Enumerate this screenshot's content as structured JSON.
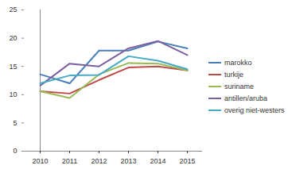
{
  "chart_data": {
    "type": "line",
    "categories": [
      "2010",
      "2011",
      "2012",
      "2013",
      "2014",
      "2015"
    ],
    "series": [
      {
        "name": "marokko",
        "color": "#4a7ebb",
        "values": [
          13.6,
          12.0,
          17.8,
          17.8,
          19.4,
          18.2
        ]
      },
      {
        "name": "turkije",
        "color": "#be4b48",
        "values": [
          10.6,
          10.2,
          12.6,
          14.8,
          15.0,
          14.3
        ]
      },
      {
        "name": "suriname",
        "color": "#98b954",
        "values": [
          10.6,
          9.4,
          13.6,
          15.6,
          15.5,
          14.3
        ]
      },
      {
        "name": "antillen/aruba",
        "color": "#7d60a0",
        "values": [
          11.6,
          15.5,
          15.0,
          18.2,
          19.5,
          17.0
        ]
      },
      {
        "name": "overig niet-westers",
        "color": "#46aac5",
        "values": [
          12.0,
          13.4,
          13.5,
          16.8,
          16.0,
          14.5
        ]
      }
    ],
    "ylim": [
      0,
      25
    ],
    "yticks": [
      0,
      5,
      10,
      15,
      20,
      25
    ],
    "grid": false,
    "legend": "right"
  }
}
